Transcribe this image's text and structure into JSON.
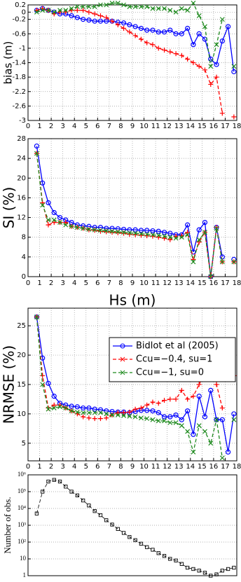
{
  "chart_data": [
    {
      "type": "line",
      "ylabel": "bias (m)",
      "x": [
        0.75,
        1.25,
        1.75,
        2.25,
        2.75,
        3.25,
        3.75,
        4.25,
        4.75,
        5.25,
        5.75,
        6.25,
        6.75,
        7.25,
        7.75,
        8.25,
        8.75,
        9.25,
        9.75,
        10.25,
        10.75,
        11.25,
        11.75,
        12.25,
        12.75,
        13.25,
        13.75,
        14.25,
        14.75,
        15.25,
        15.75,
        16.25,
        16.75,
        17.25,
        17.75
      ],
      "series": [
        {
          "name": "Bidlot et al  (2005)",
          "color": "#0000ff",
          "marker": "o",
          "linestyle": "solid",
          "values": [
            0.05,
            0.1,
            0.05,
            0,
            -0.05,
            -0.05,
            -0.1,
            -0.15,
            -0.2,
            -0.22,
            -0.25,
            -0.25,
            -0.25,
            -0.25,
            -0.28,
            -0.3,
            -0.35,
            -0.4,
            -0.45,
            -0.5,
            -0.5,
            -0.55,
            -0.55,
            -0.5,
            -0.6,
            -0.6,
            -0.45,
            -0.9,
            -0.6,
            -0.75,
            -1.3,
            -1.45,
            -0.8,
            -0.4,
            -1.65
          ]
        },
        {
          "name": "Ccu=−0.4,  su=1",
          "color": "#ff0000",
          "marker": "+",
          "linestyle": "dashed",
          "values": [
            0.05,
            0.1,
            0.05,
            -0.05,
            0,
            0,
            0.05,
            0.05,
            0.05,
            0,
            -0.05,
            -0.1,
            -0.15,
            -0.25,
            -0.35,
            -0.45,
            -0.55,
            -0.65,
            -0.75,
            -0.85,
            -0.9,
            -1,
            -1.05,
            -1.1,
            -1.15,
            -1.2,
            -1.3,
            -1.4,
            -1.5,
            -1.6,
            -2,
            -1.8,
            -2.8,
            null,
            -2.9
          ]
        },
        {
          "name": "Ccu=−1,    su=0",
          "color": "#1f8a1f",
          "marker": "x",
          "linestyle": "dashed",
          "values": [
            0,
            0.05,
            0.05,
            0,
            0.05,
            0.05,
            0.1,
            0.15,
            0.15,
            0.15,
            0.15,
            0.2,
            0.2,
            0.25,
            0.25,
            0.2,
            0.15,
            0.15,
            0.15,
            0.15,
            0.1,
            0.1,
            0.1,
            0.05,
            0,
            0.1,
            0.05,
            0.25,
            -0.1,
            -0.4,
            -1.5,
            -0.9,
            -0.2,
            null,
            -1.5
          ]
        }
      ],
      "xlim": [
        0,
        18
      ],
      "xticks": [
        0,
        1,
        2,
        3,
        4,
        5,
        6,
        7,
        8,
        9,
        10,
        11,
        12,
        13,
        14,
        15,
        16,
        17,
        18
      ],
      "ylim": [
        -3,
        0.2
      ],
      "yticks": [
        0.2,
        0,
        -0.2,
        -0.6,
        -1,
        -1.4,
        -1.8,
        -2.2,
        -2.6,
        -3
      ],
      "grid": true
    },
    {
      "type": "line",
      "ylabel": "SI (%)",
      "xlabel": "Hs (m)",
      "x": [
        0.75,
        1.25,
        1.75,
        2.25,
        2.75,
        3.25,
        3.75,
        4.25,
        4.75,
        5.25,
        5.75,
        6.25,
        6.75,
        7.25,
        7.75,
        8.25,
        8.75,
        9.25,
        9.75,
        10.25,
        10.75,
        11.25,
        11.75,
        12.25,
        12.75,
        13.25,
        13.75,
        14.25,
        14.75,
        15.25,
        15.75,
        16.25,
        16.75,
        17.25,
        17.75
      ],
      "series": [
        {
          "name": "Bidlot et al  (2005)",
          "color": "#0000ff",
          "marker": "o",
          "linestyle": "solid",
          "values": [
            26.5,
            19,
            15,
            13,
            12,
            11.5,
            11,
            10.5,
            10.3,
            10.2,
            10,
            10,
            9.8,
            9.8,
            9.7,
            9.6,
            9.5,
            9.5,
            9.4,
            9.4,
            9.3,
            9.2,
            9,
            8.8,
            8.5,
            8.5,
            10.5,
            5,
            9.5,
            11,
            0,
            10,
            4,
            null,
            3.5
          ]
        },
        {
          "name": "Ccu=−0.4,  su=1",
          "color": "#ff0000",
          "marker": "+",
          "linestyle": "dashed",
          "values": [
            25,
            15,
            10.5,
            11,
            11,
            11,
            10.2,
            10,
            9.8,
            9.5,
            9.4,
            9.2,
            9.1,
            9,
            8.9,
            8.8,
            8.6,
            8.5,
            8.4,
            8.3,
            8.2,
            8,
            7.8,
            7.5,
            8.2,
            8.3,
            9,
            3.5,
            7,
            9,
            0,
            10,
            3,
            null,
            3
          ]
        },
        {
          "name": "Ccu=−1,    su=0",
          "color": "#1f8a1f",
          "marker": "x",
          "linestyle": "dashed",
          "values": [
            25,
            14.5,
            11.5,
            11.5,
            11,
            10.5,
            10.2,
            10,
            9.8,
            9.6,
            9.5,
            9.4,
            9.3,
            9.2,
            9.1,
            9,
            8.9,
            8.8,
            8.7,
            8.6,
            8.5,
            8.4,
            8.2,
            8,
            7.8,
            8,
            8.5,
            3,
            7.5,
            9,
            0,
            9.8,
            3,
            null,
            3
          ]
        }
      ],
      "xlim": [
        0,
        18
      ],
      "xticks": [
        0,
        1,
        2,
        3,
        4,
        5,
        6,
        7,
        8,
        9,
        10,
        11,
        12,
        13,
        14,
        15,
        16,
        17,
        18
      ],
      "ylim": [
        0,
        28
      ],
      "yticks": [
        0,
        4,
        8,
        12,
        16,
        20,
        24,
        28
      ],
      "grid": true
    },
    {
      "type": "line",
      "ylabel": "NRMSE (%)",
      "legend": "right",
      "x": [
        0.75,
        1.25,
        1.75,
        2.25,
        2.75,
        3.25,
        3.75,
        4.25,
        4.75,
        5.25,
        5.75,
        6.25,
        6.75,
        7.25,
        7.75,
        8.25,
        8.75,
        9.25,
        9.75,
        10.25,
        10.75,
        11.25,
        11.75,
        12.25,
        12.75,
        13.25,
        13.75,
        14.25,
        14.75,
        15.25,
        15.75,
        16.25,
        16.75,
        17.25,
        17.75
      ],
      "series": [
        {
          "name": "Bidlot et al  (2005)",
          "color": "#0000ff",
          "marker": "o",
          "linestyle": "solid",
          "values": [
            26.5,
            19.5,
            15.2,
            13,
            11.8,
            11.5,
            11.3,
            11.2,
            11,
            11,
            10.8,
            10.7,
            10.5,
            10.4,
            10.3,
            10.3,
            10.2,
            10.4,
            10.6,
            10.6,
            10.5,
            10.2,
            9.5,
            9.5,
            9.8,
            9,
            10.5,
            6.5,
            13,
            9.5,
            14,
            9,
            9,
            3.5,
            10
          ]
        },
        {
          "name": "Ccu=−0.4,  su=1",
          "color": "#ff0000",
          "marker": "+",
          "linestyle": "dashed",
          "values": [
            26.5,
            16.5,
            11,
            11.5,
            11.5,
            11,
            10.5,
            10,
            9.5,
            9.3,
            9.2,
            9.2,
            9.3,
            9.8,
            10.2,
            10.2,
            10.3,
            10.8,
            11,
            11.5,
            12,
            11.8,
            12.3,
            12.5,
            12.5,
            14,
            12.5,
            13,
            15,
            17,
            17.5,
            15,
            11,
            null,
            16.5
          ]
        },
        {
          "name": "Ccu=−1,    su=0",
          "color": "#1f8a1f",
          "marker": "x",
          "linestyle": "dashed",
          "values": [
            26.5,
            15,
            10.8,
            11,
            11.2,
            11,
            10.5,
            10.3,
            10.2,
            10.2,
            10.2,
            10.2,
            10,
            9.8,
            9.8,
            9.7,
            9.6,
            9.5,
            9.3,
            9.2,
            9,
            8.8,
            8.8,
            8.5,
            8.5,
            8,
            7,
            3.5,
            8,
            7,
            5,
            9,
            2.5,
            null,
            9
          ]
        }
      ],
      "xlim": [
        0,
        18
      ],
      "xticks": [
        0,
        1,
        2,
        3,
        4,
        5,
        6,
        7,
        8,
        9,
        10,
        11,
        12,
        13,
        14,
        15,
        16,
        17,
        18
      ],
      "ylim": [
        2,
        28
      ],
      "yticks": [
        5,
        10,
        15,
        20,
        25
      ],
      "grid": true
    },
    {
      "type": "line",
      "ylabel": "Number of obs.",
      "yscale": "log",
      "x": [
        0.75,
        1.25,
        1.75,
        2.25,
        2.75,
        3.25,
        3.75,
        4.25,
        4.75,
        5.25,
        5.75,
        6.25,
        6.75,
        7.25,
        7.75,
        8.25,
        8.75,
        9.25,
        9.75,
        10.25,
        10.75,
        11.25,
        11.75,
        12.25,
        12.75,
        13.25,
        13.75,
        14.25,
        14.75,
        15.25,
        15.75,
        16.25,
        16.75,
        17.25,
        17.75
      ],
      "series": [
        {
          "color": "#000000",
          "marker": "s",
          "linestyle": "dashed",
          "values": [
            5000,
            100000,
            400000,
            500000,
            400000,
            200000,
            100000,
            60000,
            30000,
            15000,
            7000,
            4000,
            2000,
            1100,
            600,
            350,
            200,
            130,
            80,
            50,
            35,
            22,
            15,
            10,
            8,
            5,
            3,
            2.5,
            2,
            1.5,
            1,
            1.2,
            2,
            2.5,
            3
          ]
        }
      ],
      "xlim": [
        0,
        18
      ],
      "ylim": [
        1,
        1000000
      ],
      "yticks": [
        1,
        10,
        {
          "value": 100,
          "label": "10²"
        },
        {
          "value": 1000,
          "label": "10³"
        },
        {
          "value": 10000,
          "label": "10⁴"
        },
        {
          "value": 100000,
          "label": "10⁵"
        },
        {
          "value": 1000000,
          "label": "10⁶"
        }
      ],
      "grid": true
    }
  ]
}
